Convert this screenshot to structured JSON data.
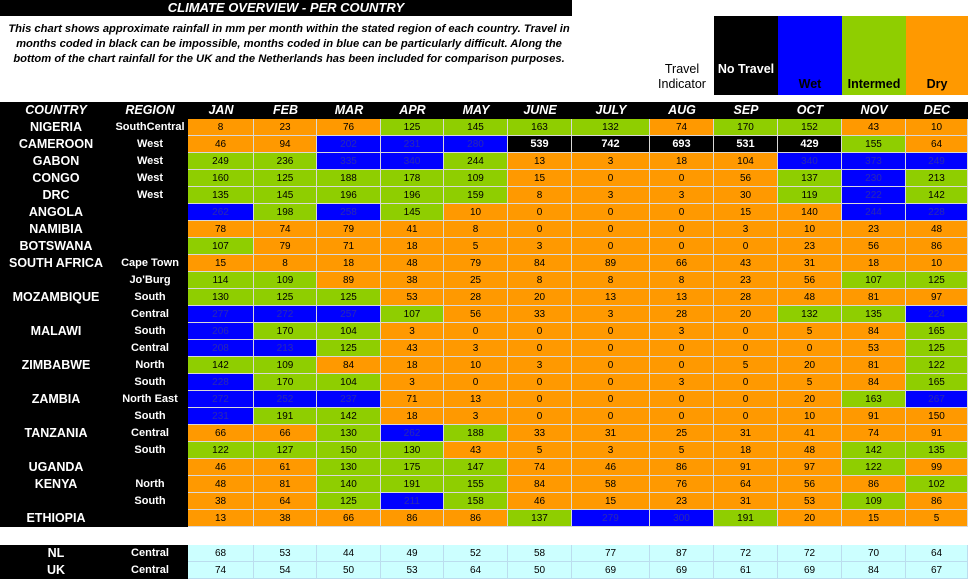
{
  "title": "CLIMATE OVERVIEW - PER COUNTRY",
  "description": "This chart shows approximate rainfall in mm per month within the stated region of each country. Travel in months coded in black can be impossible, months coded in blue can be particularly difficult. Along the bottom of the chart rainfall for the UK and the Netherlands has been included for comparison purposes.",
  "legend": {
    "travel_indicator": "Travel Indicator",
    "no_travel": "No Travel",
    "wet": "Wet",
    "intermed": "Intermed",
    "dry": "Dry",
    "colors": {
      "no_travel": "#000000",
      "wet": "#0000ff",
      "intermed": "#8fce00",
      "dry": "#ff9900",
      "comparison": "#ccffff"
    }
  },
  "headers": [
    "COUNTRY",
    "REGION",
    "JAN",
    "FEB",
    "MAR",
    "APR",
    "MAY",
    "JUNE",
    "JULY",
    "AUG",
    "SEP",
    "OCT",
    "NOV",
    "DEC"
  ],
  "rows": [
    {
      "country": "NIGERIA",
      "region": "SouthCentral",
      "values": [
        "8",
        "23",
        "76",
        "125",
        "145",
        "163",
        "132",
        "74",
        "170",
        "152",
        "43",
        "10"
      ],
      "codes": "DDDIIIIDIIDD"
    },
    {
      "country": "CAMEROON",
      "region": "West",
      "values": [
        "46",
        "94",
        "202",
        "231",
        "280",
        "539",
        "742",
        "693",
        "531",
        "429",
        "155",
        "64"
      ],
      "codes": "DDWWWNNNNNID"
    },
    {
      "country": "GABON",
      "region": "West",
      "values": [
        "249",
        "236",
        "335",
        "340",
        "244",
        "13",
        "3",
        "18",
        "104",
        "340",
        "373",
        "249"
      ],
      "codes": "IIWWIDDDDWWW"
    },
    {
      "country": "CONGO",
      "region": "West",
      "values": [
        "160",
        "125",
        "188",
        "178",
        "109",
        "15",
        "0",
        "0",
        "56",
        "137",
        "230",
        "213"
      ],
      "codes": "IIIIIDDDDIWI"
    },
    {
      "country": "DRC",
      "region": "West",
      "values": [
        "135",
        "145",
        "196",
        "196",
        "159",
        "8",
        "3",
        "3",
        "30",
        "119",
        "222",
        "142"
      ],
      "codes": "IIIIIDDDDIWI"
    },
    {
      "country": "ANGOLA",
      "region": "",
      "values": [
        "262",
        "198",
        "258",
        "145",
        "10",
        "0",
        "0",
        "0",
        "15",
        "140",
        "244",
        "228"
      ],
      "codes": "WIWIDDDDDDWW"
    },
    {
      "country": "NAMIBIA",
      "region": "",
      "values": [
        "78",
        "74",
        "79",
        "41",
        "8",
        "0",
        "0",
        "0",
        "3",
        "10",
        "23",
        "48"
      ],
      "codes": "DDDDDDDDDDDD"
    },
    {
      "country": "BOTSWANA",
      "region": "",
      "values": [
        "107",
        "79",
        "71",
        "18",
        "5",
        "3",
        "0",
        "0",
        "0",
        "23",
        "56",
        "86"
      ],
      "codes": "IDDDDDDDDDDD"
    },
    {
      "country": "SOUTH AFRICA",
      "region": "Cape Town",
      "values": [
        "15",
        "8",
        "18",
        "48",
        "79",
        "84",
        "89",
        "66",
        "43",
        "31",
        "18",
        "10"
      ],
      "codes": "DDDDDDDDDDDD"
    },
    {
      "country": "",
      "region": "Jo'Burg",
      "values": [
        "114",
        "109",
        "89",
        "38",
        "25",
        "8",
        "8",
        "8",
        "23",
        "56",
        "107",
        "125"
      ],
      "codes": "IIDDDDDDDDII"
    },
    {
      "country": "MOZAMBIQUE",
      "region": "South",
      "values": [
        "130",
        "125",
        "125",
        "53",
        "28",
        "20",
        "13",
        "13",
        "28",
        "48",
        "81",
        "97"
      ],
      "codes": "IIIDDDDDDDDD"
    },
    {
      "country": "",
      "region": "Central",
      "values": [
        "277",
        "272",
        "257",
        "107",
        "56",
        "33",
        "3",
        "28",
        "20",
        "132",
        "135",
        "224"
      ],
      "codes": "WWWIDDDDDIIW"
    },
    {
      "country": "MALAWI",
      "region": "South",
      "values": [
        "206",
        "170",
        "104",
        "3",
        "0",
        "0",
        "0",
        "3",
        "0",
        "5",
        "84",
        "165"
      ],
      "codes": "WIIDDDDDDDDI"
    },
    {
      "country": "",
      "region": "Central",
      "values": [
        "208",
        "213",
        "125",
        "43",
        "3",
        "0",
        "0",
        "0",
        "0",
        "0",
        "53",
        "125"
      ],
      "codes": "WWIDDDDDDDDI"
    },
    {
      "country": "ZIMBABWE",
      "region": "North",
      "values": [
        "142",
        "109",
        "84",
        "18",
        "10",
        "3",
        "0",
        "0",
        "5",
        "20",
        "81",
        "122"
      ],
      "codes": "IIDDDDDDDDDI"
    },
    {
      "country": "",
      "region": "South",
      "values": [
        "228",
        "170",
        "104",
        "3",
        "0",
        "0",
        "0",
        "3",
        "0",
        "5",
        "84",
        "165"
      ],
      "codes": "WIIDDDDDDDDI"
    },
    {
      "country": "ZAMBIA",
      "region": "North East",
      "values": [
        "272",
        "252",
        "237",
        "71",
        "13",
        "0",
        "0",
        "0",
        "0",
        "20",
        "163",
        "267"
      ],
      "codes": "WWWDDDDDDDIW"
    },
    {
      "country": "",
      "region": "South",
      "values": [
        "231",
        "191",
        "142",
        "18",
        "3",
        "0",
        "0",
        "0",
        "0",
        "10",
        "91",
        "150"
      ],
      "codes": "WIIDDDDDDDDD"
    },
    {
      "country": "TANZANIA",
      "region": "Central",
      "values": [
        "66",
        "66",
        "130",
        "262",
        "188",
        "33",
        "31",
        "25",
        "31",
        "41",
        "74",
        "91"
      ],
      "codes": "DDIWIDDDDDDD"
    },
    {
      "country": "",
      "region": "South",
      "values": [
        "122",
        "127",
        "150",
        "130",
        "43",
        "5",
        "3",
        "5",
        "18",
        "48",
        "142",
        "135"
      ],
      "codes": "IIIIDDDDDDII"
    },
    {
      "country": "UGANDA",
      "region": "",
      "values": [
        "46",
        "61",
        "130",
        "175",
        "147",
        "74",
        "46",
        "86",
        "91",
        "97",
        "122",
        "99"
      ],
      "codes": "DDIIIDDDDDID"
    },
    {
      "country": "KENYA",
      "region": "North",
      "values": [
        "48",
        "81",
        "140",
        "191",
        "155",
        "84",
        "58",
        "76",
        "64",
        "56",
        "86",
        "102"
      ],
      "codes": "DDIIIDDDDDDI"
    },
    {
      "country": "",
      "region": "South",
      "values": [
        "38",
        "64",
        "125",
        "211",
        "158",
        "46",
        "15",
        "23",
        "31",
        "53",
        "109",
        "86"
      ],
      "codes": "DDIWIDDDDDID"
    },
    {
      "country": "ETHIOPIA",
      "region": "",
      "values": [
        "13",
        "38",
        "66",
        "86",
        "86",
        "137",
        "279",
        "300",
        "191",
        "20",
        "15",
        "5"
      ],
      "codes": "DDDDDIWWIDDD"
    }
  ],
  "comparison": [
    {
      "country": "NL",
      "region": "Central",
      "values": [
        "68",
        "53",
        "44",
        "49",
        "52",
        "58",
        "77",
        "87",
        "72",
        "72",
        "70",
        "64"
      ]
    },
    {
      "country": "UK",
      "region": "Central",
      "values": [
        "74",
        "54",
        "50",
        "53",
        "64",
        "50",
        "69",
        "69",
        "61",
        "69",
        "84",
        "67"
      ]
    }
  ]
}
